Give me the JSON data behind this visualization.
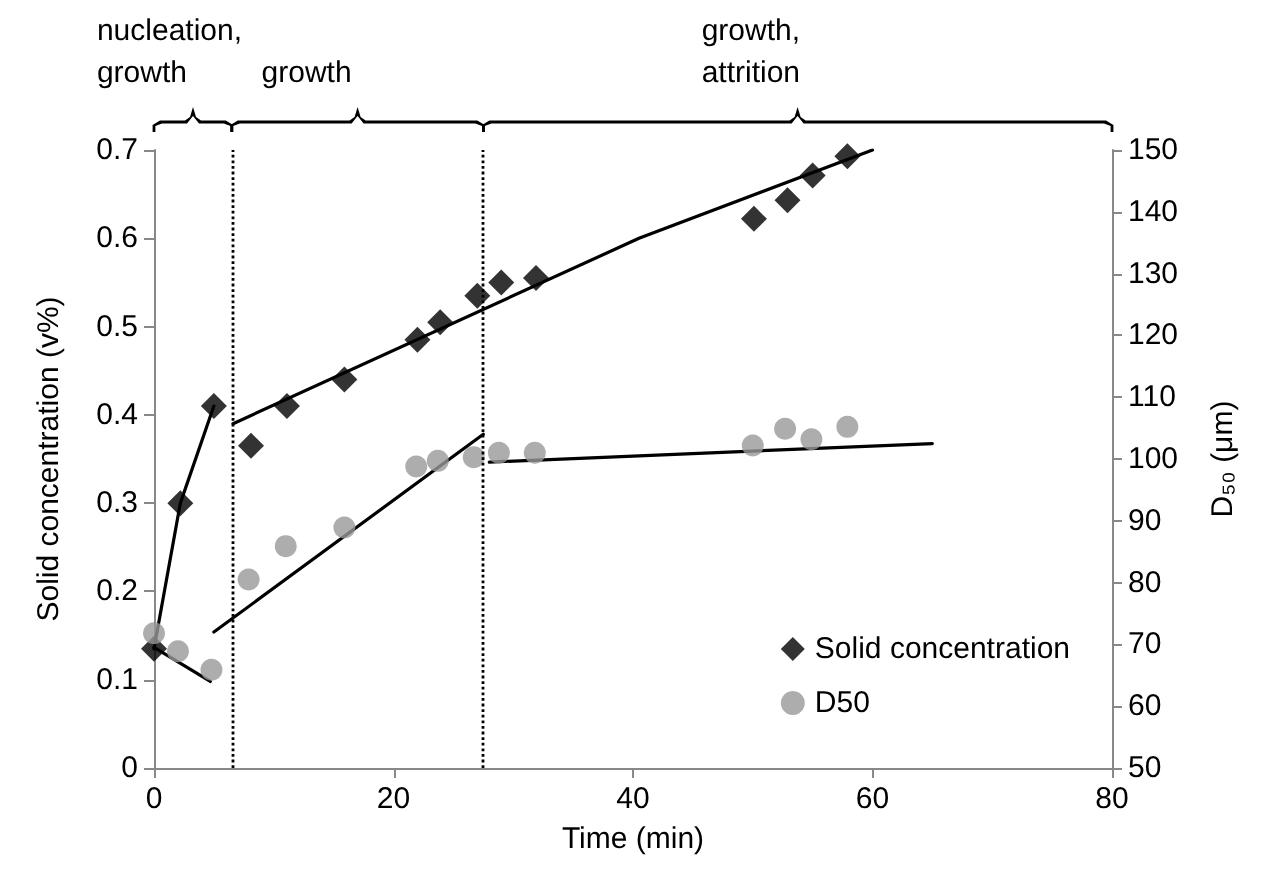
{
  "chart_data": {
    "type": "scatter",
    "xlabel": "Time (min)",
    "ylabel": "Solid concentration (v%)",
    "y2label": "D₅₀ (μm)",
    "xlim": [
      0,
      80
    ],
    "xticks": [
      0,
      20,
      40,
      60,
      80
    ],
    "ylim": [
      0,
      0.7
    ],
    "yticks": [
      0,
      0.1,
      0.2,
      0.3,
      0.4,
      0.5,
      0.6,
      0.7
    ],
    "y2lim": [
      50,
      150
    ],
    "y2ticks": [
      50,
      60,
      70,
      80,
      90,
      100,
      110,
      120,
      130,
      140,
      150
    ],
    "grid": false,
    "legend": "bottom right",
    "annotations": [
      "nucleation,\ngrowth",
      "growth",
      "growth,\nattrition"
    ],
    "ref_lines": [
      {
        "axis": "x",
        "value": 6.5,
        "color": "#000000",
        "line_style": "dotted"
      },
      {
        "axis": "x",
        "value": 27.5,
        "color": "#000000",
        "line_style": "dotted"
      }
    ],
    "series": [
      {
        "name": "Solid concentration",
        "color": "#000000",
        "marker": "diamond",
        "x": [
          0,
          2.2,
          5,
          8.1,
          11.1,
          15.9,
          22,
          23.9,
          27,
          29,
          31.9,
          50.1,
          52.9,
          55,
          57.9
        ],
        "values": [
          0.135,
          0.3,
          0.41,
          0.365,
          0.41,
          0.44,
          0.485,
          0.505,
          0.535,
          0.55,
          0.555,
          0.622,
          0.643,
          0.671,
          0.693
        ]
      },
      {
        "name": "D50",
        "color": "#999999",
        "marker": "circle",
        "axis": "y2",
        "x": [
          0,
          2,
          4.8,
          7.9,
          11,
          15.9,
          21.9,
          23.7,
          26.7,
          28.8,
          31.8,
          50,
          52.7,
          54.9,
          57.9
        ],
        "values": [
          71.8,
          68.9,
          65.9,
          80.5,
          85.9,
          88.9,
          98.8,
          99.7,
          100.3,
          101,
          101,
          102.2,
          104.9,
          103.2,
          105.2
        ]
      },
      {
        "type": "line",
        "color": "#000000",
        "marker": "none",
        "x": [
          0,
          2.2,
          5
        ],
        "values": [
          0.135,
          0.3,
          0.41
        ]
      },
      {
        "type": "line",
        "color": "#000000",
        "marker": "none",
        "x": [
          6.6,
          40.5,
          60
        ],
        "values": [
          0.39,
          0.6,
          0.7
        ]
      },
      {
        "type": "line",
        "color": "#000000",
        "marker": "none",
        "axis": "y2",
        "x": [
          0,
          4.7
        ],
        "values": [
          69.5,
          64
        ]
      },
      {
        "type": "line",
        "color": "#000000",
        "marker": "none",
        "axis": "y2",
        "x": [
          5,
          27.5
        ],
        "values": [
          72,
          104
        ]
      },
      {
        "type": "line",
        "color": "#000000",
        "marker": "none",
        "axis": "y2",
        "x": [
          28,
          65
        ],
        "values": [
          99.5,
          102.5
        ]
      }
    ]
  }
}
